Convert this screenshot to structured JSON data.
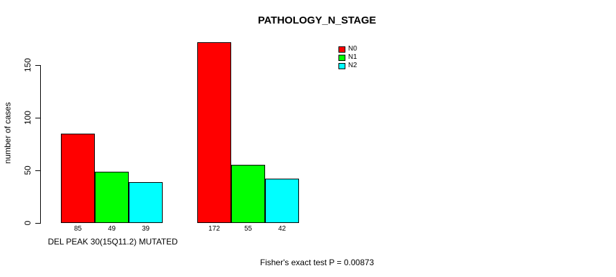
{
  "chart_data": {
    "type": "bar",
    "title": "PATHOLOGY_N_STAGE",
    "ylabel": "number of cases",
    "yticks": [
      0,
      50,
      100,
      150
    ],
    "ylim": [
      0,
      150
    ],
    "grid": false,
    "legend_position": "top-right",
    "groups": [
      "DEL PEAK 30(15Q11.2) MUTATED",
      ""
    ],
    "series": [
      {
        "name": "N0",
        "color": "#FF0000",
        "values": [
          85,
          172
        ]
      },
      {
        "name": "N1",
        "color": "#00FF00",
        "values": [
          49,
          55
        ]
      },
      {
        "name": "N2",
        "color": "#00FFFF",
        "values": [
          39,
          42
        ]
      }
    ],
    "bar_value_labels_shown": true,
    "footer": "Fisher's exact test P = 0.00873",
    "axis_color": "#000000",
    "bar_border_color": "#000000",
    "background_color": "#FFFFFF"
  }
}
